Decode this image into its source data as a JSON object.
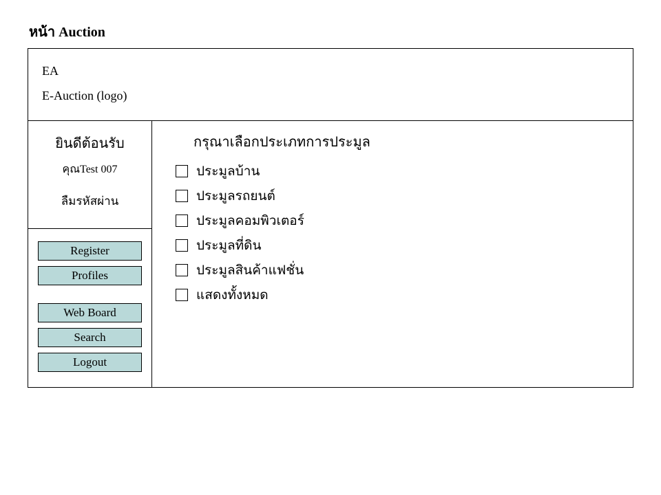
{
  "page_title": "หน้า Auction",
  "header": {
    "line1": "EA",
    "line2": "E-Auction (logo)"
  },
  "sidebar": {
    "welcome_title": "ยินดีต้อนรับ",
    "welcome_user": "คุณTest 007",
    "forgot_password": "ลืมรหัสผ่าน",
    "nav": {
      "register": "Register",
      "profiles": "Profiles",
      "webboard": "Web Board",
      "search": "Search",
      "logout": "Logout"
    }
  },
  "main": {
    "title": "กรุณาเลือกประเภทการประมูล",
    "options": [
      "ประมูลบ้าน",
      "ประมูลรถยนต์",
      "ประมูลคอมพิวเตอร์",
      "ประมูลที่ดิน",
      "ประมูลสินค้าแฟชั่น",
      "แสดงทั้งหมด"
    ]
  },
  "colors": {
    "button_bg": "#b9d9d9",
    "border": "#000000",
    "background": "#ffffff"
  }
}
